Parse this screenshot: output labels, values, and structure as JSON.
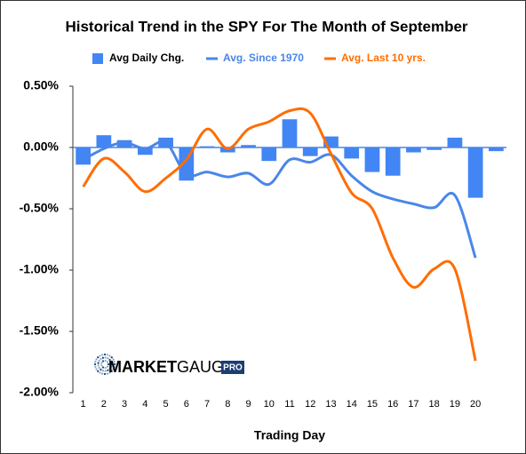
{
  "chart_data": {
    "type": "bar",
    "title": "Historical Trend in the SPY For The Month of September",
    "x_label": "Trading Day",
    "categories": [
      "1",
      "2",
      "3",
      "4",
      "5",
      "6",
      "7",
      "8",
      "9",
      "10",
      "11",
      "12",
      "13",
      "14",
      "15",
      "16",
      "17",
      "18",
      "19",
      "20",
      null
    ],
    "series": [
      {
        "name": "Avg Daily Chg.",
        "type": "bar",
        "color": "#4285f4",
        "values": [
          -0.14,
          0.1,
          0.06,
          -0.06,
          0.08,
          -0.27,
          0.01,
          -0.04,
          0.02,
          -0.11,
          0.23,
          -0.07,
          0.09,
          -0.09,
          -0.2,
          -0.23,
          -0.04,
          -0.02,
          0.08,
          -0.41,
          -0.03
        ]
      },
      {
        "name": "Avg. Since 1970",
        "type": "line",
        "color": "#4a86e8",
        "values": [
          -0.1,
          -0.01,
          0.04,
          -0.01,
          0.04,
          -0.22,
          -0.2,
          -0.24,
          -0.21,
          -0.3,
          -0.1,
          -0.12,
          -0.06,
          -0.23,
          -0.36,
          -0.42,
          -0.46,
          -0.49,
          -0.39,
          -0.9,
          null
        ]
      },
      {
        "name": "Avg. Last 10 yrs.",
        "type": "line",
        "color": "#ff6d01",
        "values": [
          -0.32,
          -0.09,
          -0.2,
          -0.36,
          -0.25,
          -0.1,
          0.15,
          -0.01,
          0.15,
          0.21,
          0.3,
          0.28,
          -0.05,
          -0.37,
          -0.5,
          -0.9,
          -1.14,
          -0.99,
          -0.99,
          -1.74,
          null
        ]
      }
    ],
    "ylim": [
      -2,
      0.5
    ],
    "yticks": [
      {
        "value": 0.5,
        "label": "0.50%"
      },
      {
        "value": 0,
        "label": "0.00%"
      },
      {
        "value": -0.5,
        "label": "-0.50%"
      },
      {
        "value": -1,
        "label": "-1.00%"
      },
      {
        "value": -1.5,
        "label": "-1.50%"
      },
      {
        "value": -2,
        "label": "-2.00%"
      }
    ],
    "legend": "top",
    "logo": {
      "brand_bold": "MARKET",
      "brand": "GAUGE",
      "badge": "PRO"
    }
  }
}
